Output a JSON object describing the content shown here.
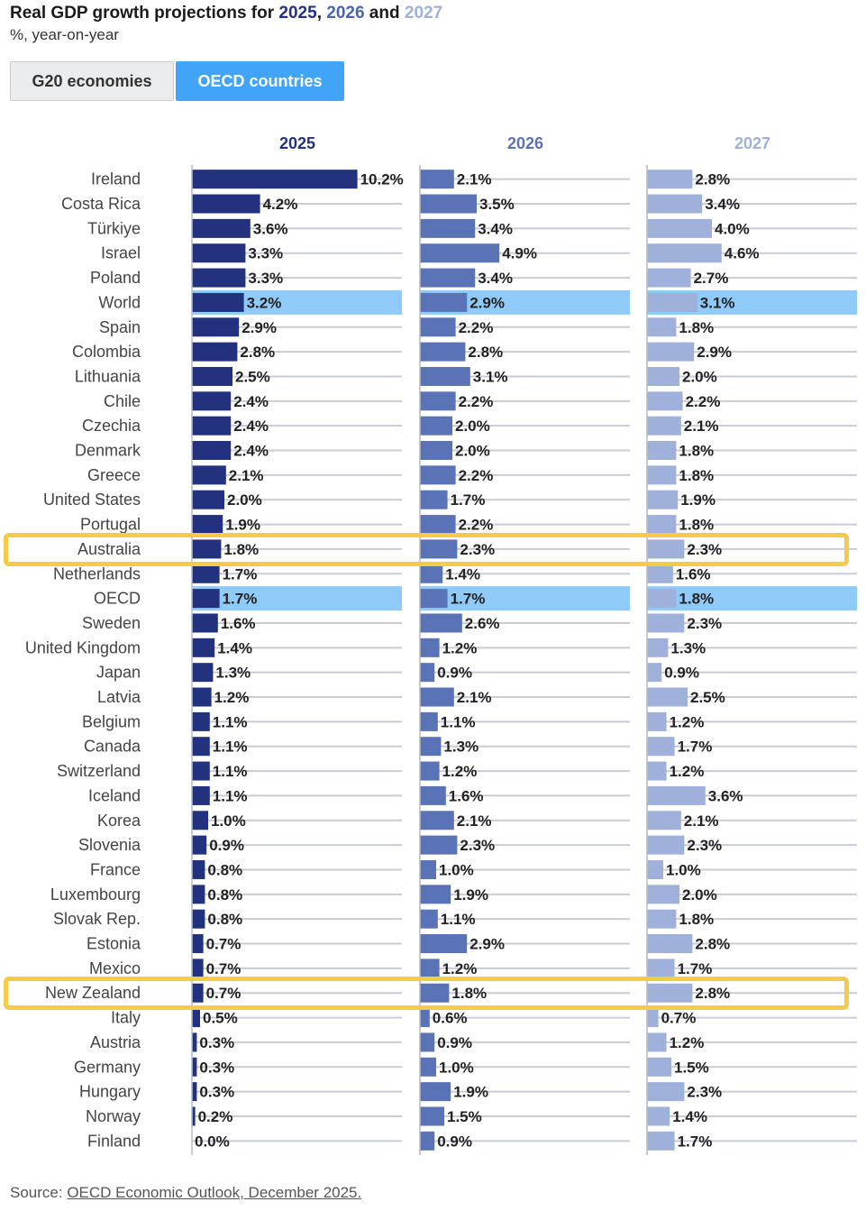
{
  "title": {
    "prefix": "Real GDP growth projections for ",
    "y2025": "2025",
    "sep1": ", ",
    "y2026": "2026",
    "sep2": " and ",
    "y2027": "2027"
  },
  "subtitle": "%, year-on-year",
  "tabs": {
    "g20": "G20 economies",
    "oecd": "OECD countries",
    "active": "oecd"
  },
  "source": {
    "prefix": "Source: ",
    "link": "OECD Economic Outlook, December 2025."
  },
  "highlighted": [
    "Australia",
    "New Zealand"
  ],
  "colors": {
    "c2025": "#22327e",
    "c2026": "#5a73b7",
    "c2027": "#9fb0da",
    "aggregate_band": "#8fcaf8",
    "highlight": "#f3cb46"
  },
  "chart_data": {
    "type": "bar",
    "title": "Real GDP growth projections for 2025, 2026 and 2027",
    "unit": "%, year-on-year",
    "aggregates": [
      "World",
      "OECD"
    ],
    "categories": [
      "Ireland",
      "Costa Rica",
      "Türkiye",
      "Israel",
      "Poland",
      "World",
      "Spain",
      "Colombia",
      "Lithuania",
      "Chile",
      "Czechia",
      "Denmark",
      "Greece",
      "United States",
      "Portugal",
      "Australia",
      "Netherlands",
      "OECD",
      "Sweden",
      "United Kingdom",
      "Japan",
      "Latvia",
      "Belgium",
      "Canada",
      "Switzerland",
      "Iceland",
      "Korea",
      "Slovenia",
      "France",
      "Luxembourg",
      "Slovak Rep.",
      "Estonia",
      "Mexico",
      "New Zealand",
      "Italy",
      "Austria",
      "Germany",
      "Hungary",
      "Norway",
      "Finland"
    ],
    "series": [
      {
        "name": "2025",
        "values": [
          10.2,
          4.2,
          3.6,
          3.3,
          3.3,
          3.2,
          2.9,
          2.8,
          2.5,
          2.4,
          2.4,
          2.4,
          2.1,
          2.0,
          1.9,
          1.8,
          1.7,
          1.7,
          1.6,
          1.4,
          1.3,
          1.2,
          1.1,
          1.1,
          1.1,
          1.1,
          1.0,
          0.9,
          0.8,
          0.8,
          0.8,
          0.7,
          0.7,
          0.7,
          0.5,
          0.3,
          0.3,
          0.3,
          0.2,
          0.0
        ]
      },
      {
        "name": "2026",
        "values": [
          2.1,
          3.5,
          3.4,
          4.9,
          3.4,
          2.9,
          2.2,
          2.8,
          3.1,
          2.2,
          2.0,
          2.0,
          2.2,
          1.7,
          2.2,
          2.3,
          1.4,
          1.7,
          2.6,
          1.2,
          0.9,
          2.1,
          1.1,
          1.3,
          1.2,
          1.6,
          2.1,
          2.3,
          1.0,
          1.9,
          1.1,
          2.9,
          1.2,
          1.8,
          0.6,
          0.9,
          1.0,
          1.9,
          1.5,
          0.9
        ]
      },
      {
        "name": "2027",
        "values": [
          2.8,
          3.4,
          4.0,
          4.6,
          2.7,
          3.1,
          1.8,
          2.9,
          2.0,
          2.2,
          2.1,
          1.8,
          1.8,
          1.9,
          1.8,
          2.3,
          1.6,
          1.8,
          2.3,
          1.3,
          0.9,
          2.5,
          1.2,
          1.7,
          1.2,
          3.6,
          2.1,
          2.3,
          1.0,
          2.0,
          1.8,
          2.8,
          1.7,
          2.8,
          0.7,
          1.2,
          1.5,
          2.3,
          1.4,
          1.7
        ]
      }
    ]
  }
}
